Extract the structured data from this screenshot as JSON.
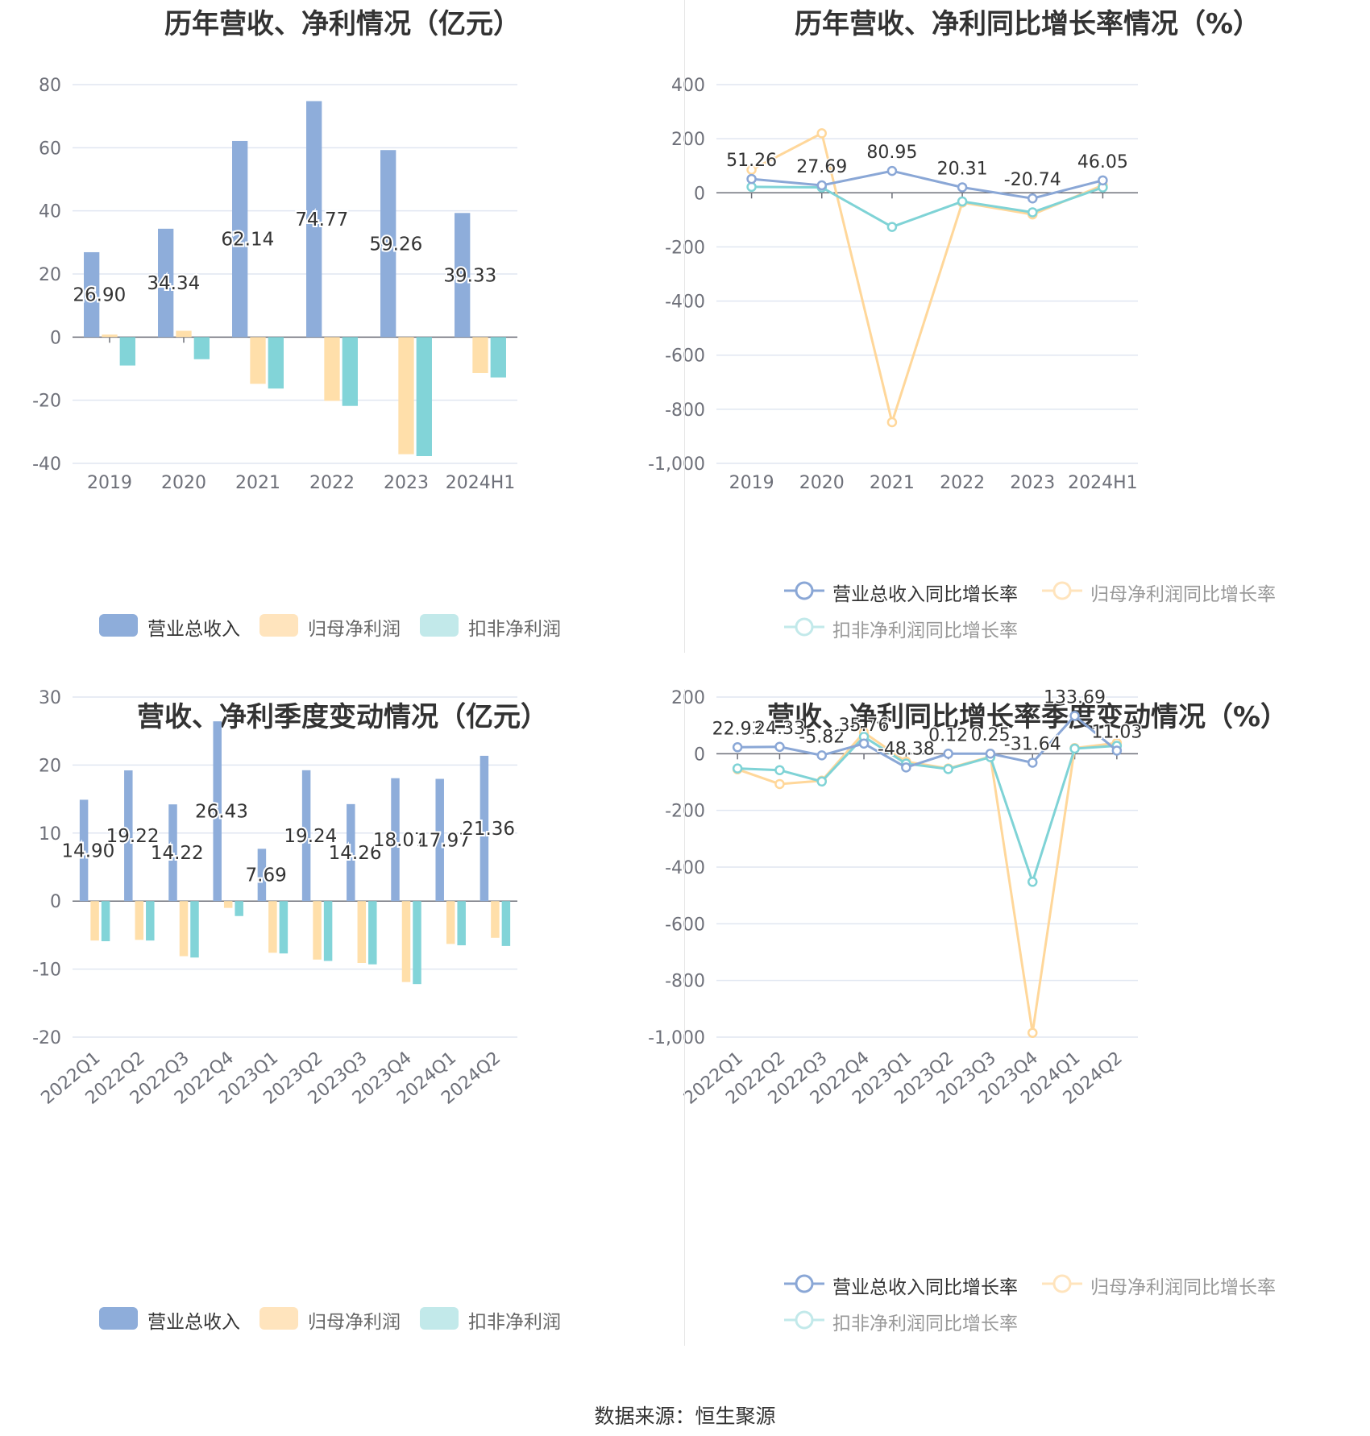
{
  "colors": {
    "revenue": "#8eadda",
    "net_profit": "#ffdfaa",
    "deducted": "#82d4d8",
    "line_revenue": "#8aa7d6",
    "line_net": "#ffd79a",
    "line_deducted": "#7fd3d6",
    "grid": "#e0e6f1",
    "text": "#333333",
    "axis_label": "#6e7079"
  },
  "source": "数据来源：恒生聚源",
  "legend_bar": [
    "营业总收入",
    "归母净利润",
    "扣非净利润"
  ],
  "legend_line": [
    "营业总收入同比增长率",
    "归母净利润同比增长率",
    "扣非净利润同比增长率"
  ],
  "chart_data": [
    {
      "type": "bar",
      "title": "历年营收、净利情况（亿元）",
      "categories": [
        "2019",
        "2020",
        "2021",
        "2022",
        "2023",
        "2024H1"
      ],
      "ylim": [
        -40,
        80
      ],
      "yticks": [
        80,
        60,
        40,
        20,
        0,
        -20,
        -40
      ],
      "series": [
        {
          "name": "营业总收入",
          "values": [
            26.9,
            34.34,
            62.14,
            74.77,
            59.26,
            39.33
          ]
        },
        {
          "name": "归母净利润",
          "values": [
            0.8,
            2.0,
            -14.8,
            -20.2,
            -37.1,
            -11.4
          ]
        },
        {
          "name": "扣非净利润",
          "values": [
            -9.0,
            -7.0,
            -16.3,
            -21.8,
            -37.7,
            -12.8
          ]
        }
      ],
      "data_labels": [
        "26.90",
        "34.34",
        "62.14",
        "74.77",
        "59.26",
        "39.33"
      ],
      "legend": "bottom"
    },
    {
      "type": "line",
      "title": "历年营收、净利同比增长率情况（%）",
      "categories": [
        "2019",
        "2020",
        "2021",
        "2022",
        "2023",
        "2024H1"
      ],
      "ylim": [
        -1000,
        400
      ],
      "yticks": [
        "400",
        "200",
        "0",
        "-200",
        "-400",
        "-600",
        "-800",
        "-1,000"
      ],
      "series": [
        {
          "name": "营业总收入同比增长率",
          "values": [
            51.26,
            27.69,
            80.95,
            20.31,
            -20.74,
            46.05
          ]
        },
        {
          "name": "归母净利润同比增长率",
          "values": [
            85,
            220,
            -848,
            -36,
            -80,
            28
          ]
        },
        {
          "name": "扣非净利润同比增长率",
          "values": [
            22,
            20,
            -126,
            -32,
            -72,
            20
          ]
        }
      ],
      "data_labels": [
        "51.26",
        "27.69",
        "80.95",
        "20.31",
        "-20.74",
        "46.05"
      ],
      "legend": "bottom"
    },
    {
      "type": "bar",
      "title": "营收、净利季度变动情况（亿元）",
      "categories": [
        "2022Q1",
        "2022Q2",
        "2022Q3",
        "2022Q4",
        "2023Q1",
        "2023Q2",
        "2023Q3",
        "2023Q4",
        "2024Q1",
        "2024Q2"
      ],
      "ylim": [
        -20,
        30
      ],
      "yticks": [
        30,
        20,
        10,
        0,
        -10,
        -20
      ],
      "series": [
        {
          "name": "营业总收入",
          "values": [
            14.9,
            19.22,
            14.22,
            26.43,
            7.69,
            19.24,
            14.26,
            18.07,
            17.97,
            21.36
          ]
        },
        {
          "name": "归母净利润",
          "values": [
            -5.8,
            -5.7,
            -8.1,
            -1.0,
            -7.6,
            -8.6,
            -9.1,
            -11.9,
            -6.3,
            -5.4
          ]
        },
        {
          "name": "扣非净利润",
          "values": [
            -5.9,
            -5.8,
            -8.3,
            -2.2,
            -7.7,
            -8.8,
            -9.3,
            -12.2,
            -6.5,
            -6.6
          ]
        }
      ],
      "data_labels": [
        "14.90",
        "19.22",
        "14.22",
        "26.43",
        "7.69",
        "19.24",
        "14.26",
        "18.07",
        "17.97",
        "21.36"
      ],
      "legend": "bottom"
    },
    {
      "type": "line",
      "title": "营收、净利同比增长率季度变动情况（%）",
      "categories": [
        "2022Q1",
        "2022Q2",
        "2022Q3",
        "2022Q4",
        "2023Q1",
        "2023Q2",
        "2023Q3",
        "2023Q4",
        "2024Q1",
        "2024Q2"
      ],
      "ylim": [
        -1000,
        200
      ],
      "yticks": [
        "200",
        "0",
        "-200",
        "-400",
        "-600",
        "-800",
        "-1,000"
      ],
      "series": [
        {
          "name": "营业总收入同比增长率",
          "values": [
            22.93,
            24.33,
            -5.82,
            35.76,
            -48.38,
            0.12,
            0.25,
            -31.64,
            133.69,
            11.03
          ]
        },
        {
          "name": "归母净利润同比增长率",
          "values": [
            -55,
            -107,
            -95,
            75,
            -28,
            -52,
            -10,
            -985,
            20,
            38
          ]
        },
        {
          "name": "扣非净利润同比增长率",
          "values": [
            -52,
            -58,
            -98,
            60,
            -35,
            -54,
            -12,
            -452,
            18,
            28
          ]
        }
      ],
      "data_labels": [
        "22.93",
        "24.33",
        "-5.82",
        "35.76",
        "-48.38",
        "0.12",
        "0.25",
        "-31.64",
        "133.69",
        "11.03"
      ],
      "legend": "bottom"
    }
  ]
}
